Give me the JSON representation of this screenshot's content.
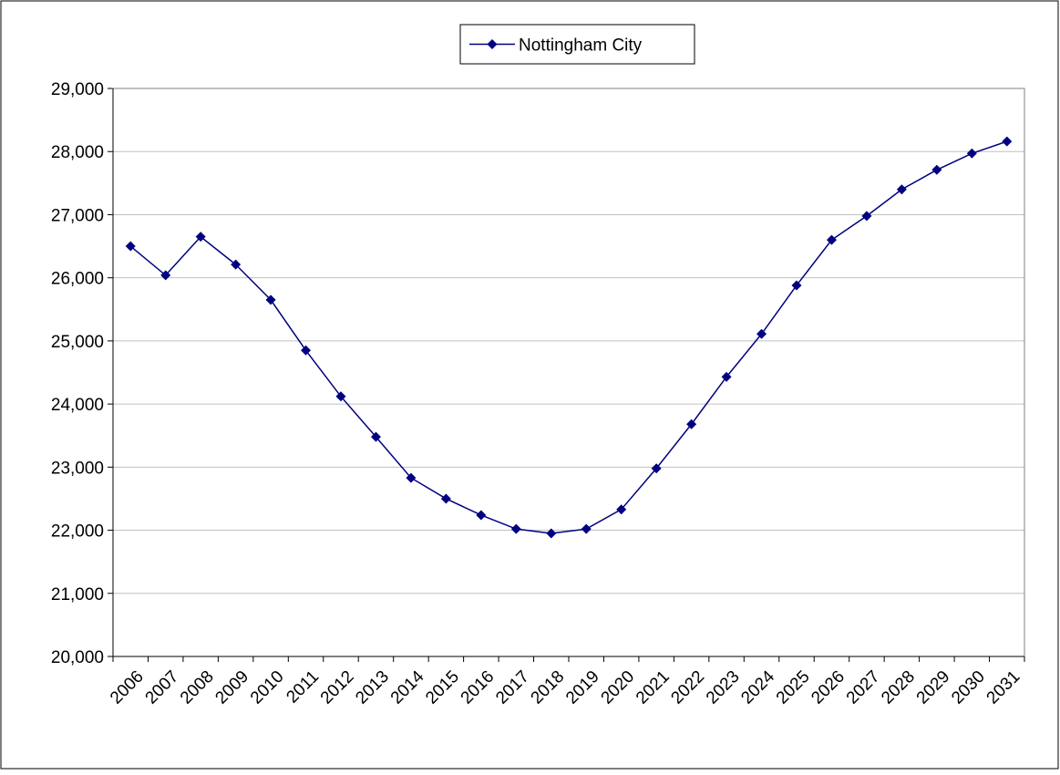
{
  "chart_data": {
    "type": "line",
    "categories": [
      "2006",
      "2007",
      "2008",
      "2009",
      "2010",
      "2011",
      "2012",
      "2013",
      "2014",
      "2015",
      "2016",
      "2017",
      "2018",
      "2019",
      "2020",
      "2021",
      "2022",
      "2023",
      "2024",
      "2025",
      "2026",
      "2027",
      "2028",
      "2029",
      "2030",
      "2031"
    ],
    "series": [
      {
        "name": "Nottingham City",
        "color": "#000080",
        "values": [
          26500,
          26040,
          26650,
          26210,
          25650,
          24850,
          24120,
          23480,
          22830,
          22500,
          22240,
          22020,
          21950,
          22020,
          22330,
          22980,
          23680,
          24430,
          25110,
          25880,
          26600,
          26980,
          27400,
          27710,
          27970,
          28160
        ]
      }
    ],
    "ylim": [
      20000,
      29000
    ],
    "yticks": [
      {
        "value": 20000,
        "label": "20,000"
      },
      {
        "value": 21000,
        "label": "21,000"
      },
      {
        "value": 22000,
        "label": "22,000"
      },
      {
        "value": 23000,
        "label": "23,000"
      },
      {
        "value": 24000,
        "label": "24,000"
      },
      {
        "value": 25000,
        "label": "25,000"
      },
      {
        "value": 26000,
        "label": "26,000"
      },
      {
        "value": 27000,
        "label": "27,000"
      },
      {
        "value": 28000,
        "label": "28,000"
      },
      {
        "value": 29000,
        "label": "29,000"
      }
    ],
    "grid": true,
    "legend": "top"
  }
}
